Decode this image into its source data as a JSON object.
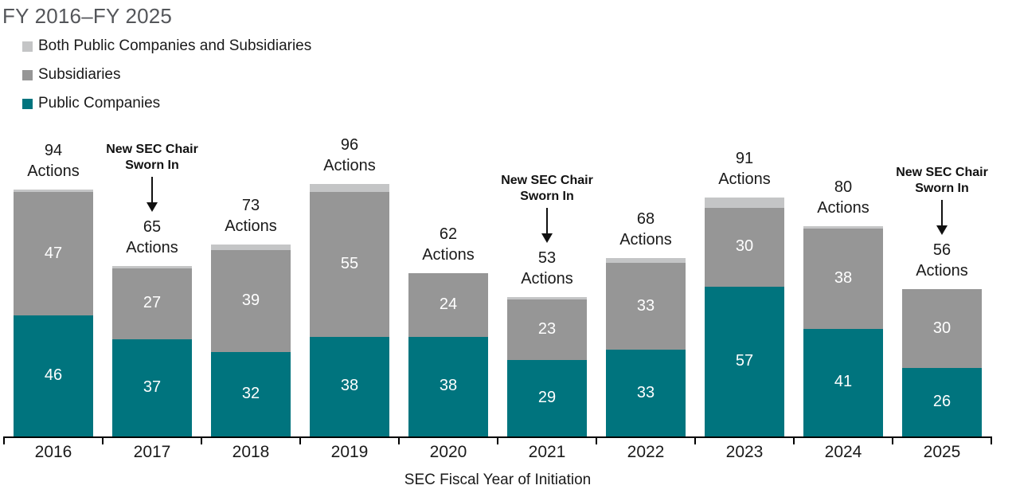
{
  "title": "FY 2016–FY 2025",
  "legend": {
    "items": [
      {
        "label": "Both Public Companies and Subsidiaries",
        "color": "#c4c5c6"
      },
      {
        "label": "Subsidiaries",
        "color": "#969696"
      },
      {
        "label": "Public Companies",
        "color": "#00747e"
      }
    ]
  },
  "chart_data": {
    "type": "bar",
    "stacked": true,
    "title": "FY 2016–FY 2025",
    "xlabel": "SEC Fiscal Year of Initiation",
    "ylabel": "",
    "grid": false,
    "legend_position": "top-left",
    "ylim": [
      0,
      100
    ],
    "categories": [
      "2016",
      "2017",
      "2018",
      "2019",
      "2020",
      "2021",
      "2022",
      "2023",
      "2024",
      "2025"
    ],
    "series": [
      {
        "name": "Public Companies",
        "color": "#00747e",
        "labels_shown": true,
        "values": [
          46,
          37,
          32,
          38,
          38,
          29,
          33,
          57,
          41,
          26
        ]
      },
      {
        "name": "Subsidiaries",
        "color": "#969696",
        "labels_shown": true,
        "values": [
          47,
          27,
          39,
          55,
          24,
          23,
          33,
          30,
          38,
          30
        ]
      },
      {
        "name": "Both Public Companies and Subsidiaries",
        "color": "#c4c5c6",
        "labels_shown": false,
        "values": [
          1,
          1,
          2,
          3,
          0,
          1,
          2,
          4,
          1,
          0
        ]
      }
    ],
    "totals": [
      94,
      65,
      73,
      96,
      62,
      53,
      68,
      91,
      80,
      56
    ],
    "total_label_word": "Actions",
    "annotations": [
      {
        "category": "2017",
        "lines": [
          "New SEC Chair",
          "Sworn In"
        ]
      },
      {
        "category": "2021",
        "lines": [
          "New SEC Chair",
          "Sworn In"
        ]
      },
      {
        "category": "2025",
        "lines": [
          "New SEC Chair",
          "Sworn In"
        ]
      }
    ]
  }
}
